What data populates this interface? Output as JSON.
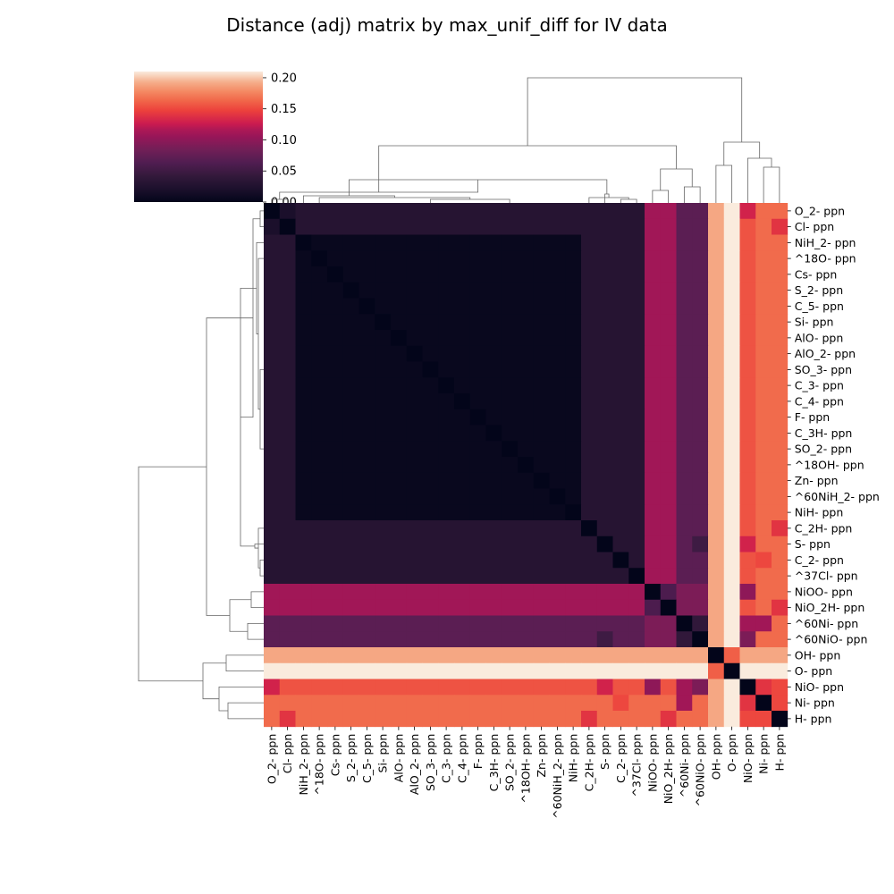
{
  "chart_data": {
    "type": "heatmap",
    "title": "Distance (adj) matrix by max_unif_diff for IV data",
    "labels": [
      "O_2- ppn",
      "Cl- ppn",
      "NiH_2- ppn",
      "^18O- ppn",
      "Cs- ppn",
      "S_2- ppn",
      "C_5- ppn",
      "Si- ppn",
      "AlO- ppn",
      "AlO_2- ppn",
      "SO_3- ppn",
      "C_3- ppn",
      "C_4- ppn",
      "F- ppn",
      "C_3H- ppn",
      "SO_2- ppn",
      "^18OH- ppn",
      "Zn- ppn",
      "^60NiH_2- ppn",
      "NiH- ppn",
      "C_2H- ppn",
      "S- ppn",
      "C_2- ppn",
      "^37Cl- ppn",
      "NiOO- ppn",
      "NiO_2H- ppn",
      "^60Ni- ppn",
      "^60NiO- ppn",
      "OH- ppn",
      "O- ppn",
      "NiO- ppn",
      "Ni- ppn",
      "H- ppn"
    ],
    "groups": {
      "core": [
        2,
        3,
        4,
        5,
        6,
        7,
        8,
        9,
        10,
        11,
        12,
        13,
        14,
        15,
        16,
        17,
        18,
        19
      ],
      "edge_low": [
        0,
        1,
        20,
        21,
        22,
        23
      ],
      "nio_pair": [
        24,
        25
      ],
      "ni60_pair": [
        26,
        27
      ],
      "oh_o": [
        28,
        29
      ],
      "nio_ni_h": [
        30,
        31,
        32
      ]
    },
    "block_values": {
      "core_core": 0.005,
      "core_edge": 0.03,
      "edge_edge": 0.03,
      "to_nio_pair": 0.11,
      "nio_pair_inner": 0.06,
      "to_ni60_pair": 0.07,
      "ni60_pair_inner": 0.04,
      "nio_to_ni60": 0.09,
      "to_OH": 0.19,
      "to_O": 0.21,
      "OH_O": 0.16,
      "to_NiO": 0.155,
      "to_Ni": 0.165,
      "to_H": 0.165,
      "NiO_Ni": 0.14,
      "NiO_H": 0.15,
      "Ni_H": 0.15
    },
    "overrides": [
      {
        "a": 0,
        "b": 30,
        "v": 0.13
      },
      {
        "a": 1,
        "b": 32,
        "v": 0.14
      },
      {
        "a": 20,
        "b": 32,
        "v": 0.14
      },
      {
        "a": 21,
        "b": 30,
        "v": 0.13
      },
      {
        "a": 22,
        "b": 31,
        "v": 0.15
      },
      {
        "a": 26,
        "b": 30,
        "v": 0.11
      },
      {
        "a": 26,
        "b": 31,
        "v": 0.11
      },
      {
        "a": 27,
        "b": 30,
        "v": 0.09
      },
      {
        "a": 24,
        "b": 30,
        "v": 0.1
      },
      {
        "a": 25,
        "b": 32,
        "v": 0.14
      },
      {
        "a": 0,
        "b": 1,
        "v": 0.02
      },
      {
        "a": 21,
        "b": 27,
        "v": 0.05
      }
    ],
    "colorbar": {
      "range": [
        0.0,
        0.21
      ],
      "ticks": [
        "0.00",
        "0.05",
        "0.10",
        "0.15",
        "0.20"
      ],
      "tick_values": [
        0.0,
        0.05,
        0.1,
        0.15,
        0.2
      ],
      "colormap": "rocket"
    }
  }
}
